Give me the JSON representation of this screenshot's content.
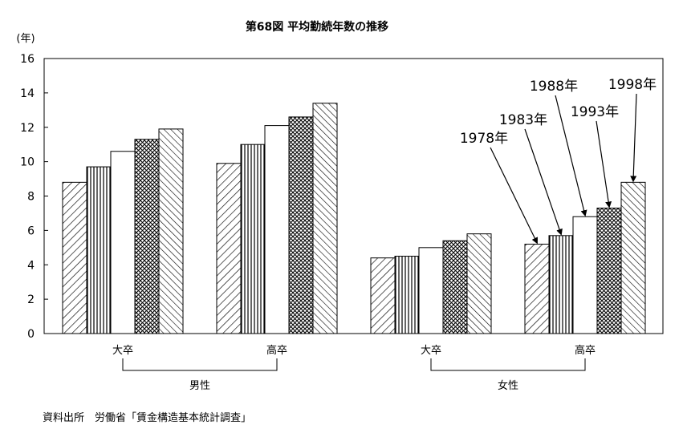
{
  "chart_data": {
    "type": "bar",
    "title": "第68図 平均勤続年数の推移",
    "ylabel": "(年)",
    "ylim": [
      0,
      16
    ],
    "yticks": [
      "0",
      "2",
      "4",
      "6",
      "8",
      "10",
      "12",
      "14",
      "16"
    ],
    "grid": false,
    "categories": [
      "大卒",
      "高卒",
      "大卒",
      "高卒"
    ],
    "groups": [
      {
        "label": "男性",
        "categories": [
          0,
          1
        ]
      },
      {
        "label": "女性",
        "categories": [
          2,
          3
        ]
      }
    ],
    "series": [
      {
        "name": "1978年",
        "pattern": "hatch-right",
        "values": [
          8.8,
          9.9,
          4.4,
          5.2
        ]
      },
      {
        "name": "1983年",
        "pattern": "vertical",
        "values": [
          9.7,
          11.0,
          4.5,
          5.7
        ]
      },
      {
        "name": "1988年",
        "pattern": "blank",
        "values": [
          10.6,
          12.1,
          5.0,
          6.8
        ]
      },
      {
        "name": "1993年",
        "pattern": "dots",
        "values": [
          11.3,
          12.6,
          5.4,
          7.3
        ]
      },
      {
        "name": "1998年",
        "pattern": "hatch-left",
        "values": [
          11.9,
          13.4,
          5.8,
          8.8
        ]
      }
    ],
    "legend": "annotation-arrows on 女性・高卒 bars"
  },
  "source": "資料出所　労働省「賃金構造基本統計調査」"
}
